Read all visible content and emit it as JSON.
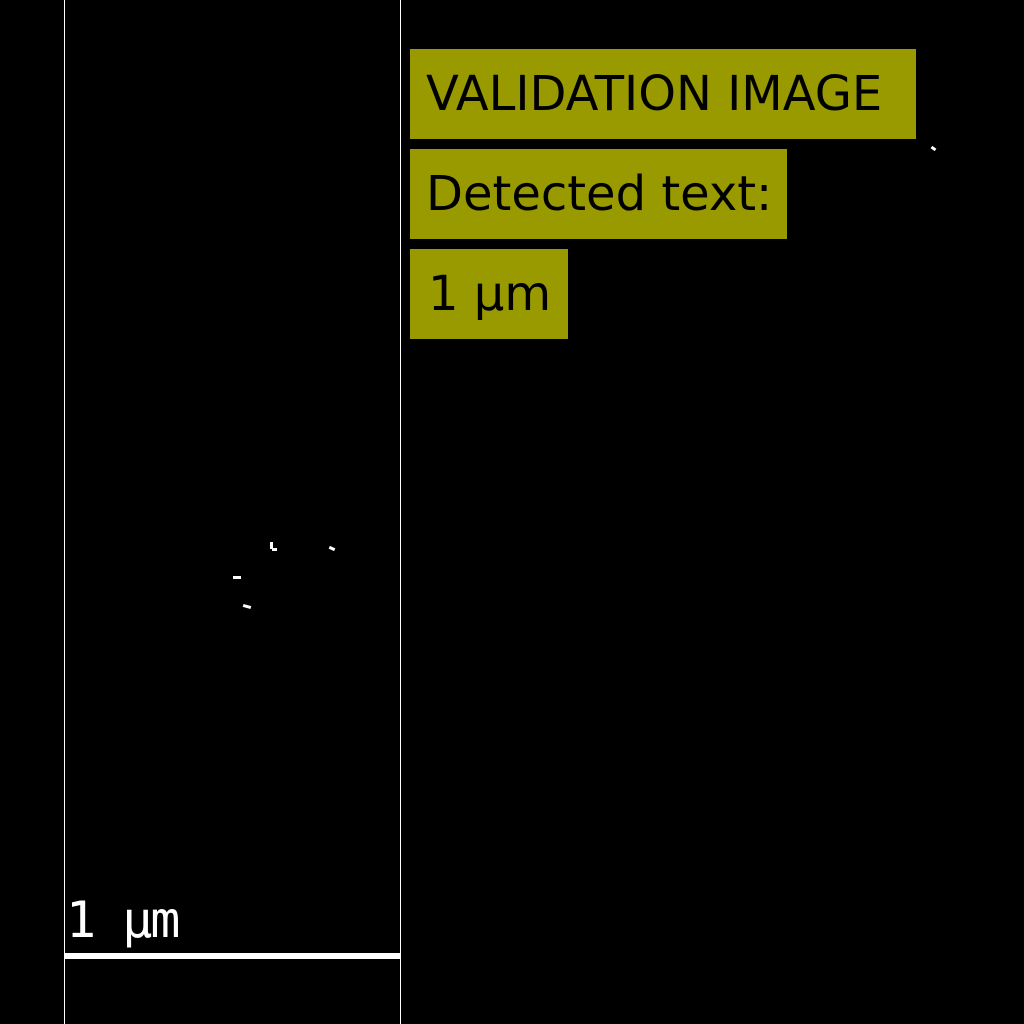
{
  "validation_label": "VALIDATION IMAGE",
  "detected_label": "Detected text:",
  "detected_value": "1 µm",
  "scale_bar_label": "1 µm",
  "colors": {
    "background": "#000000",
    "label_box": "#999900",
    "label_text": "#000000",
    "lines": "#ffffff"
  }
}
